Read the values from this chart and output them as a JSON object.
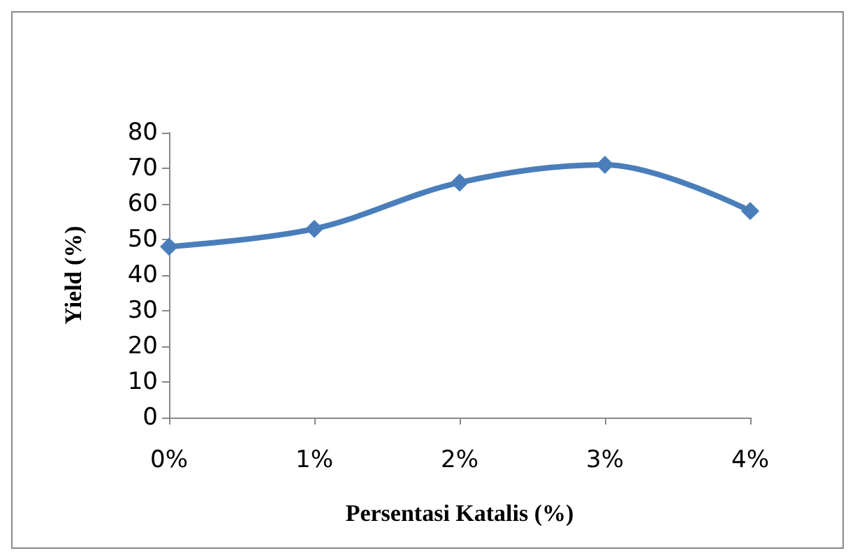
{
  "chart_data": {
    "type": "line",
    "xlabel": "Persentasi Katalis (%)",
    "ylabel": "Yield (%)",
    "categories": [
      "0%",
      "1%",
      "2%",
      "3%",
      "4%"
    ],
    "series": [
      {
        "color": "#4a7ebb",
        "values": [
          48,
          53,
          66,
          71,
          58
        ]
      }
    ],
    "ylim": [
      0,
      80
    ],
    "yticks": [
      0,
      10,
      20,
      30,
      40,
      50,
      60,
      70,
      80
    ],
    "grid": false,
    "marker": "diamond",
    "line_style": "solid"
  }
}
